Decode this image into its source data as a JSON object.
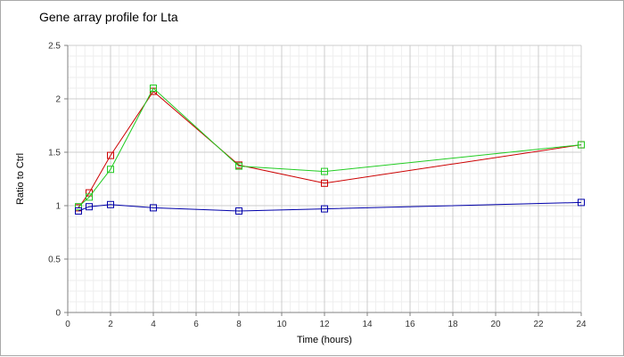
{
  "chart_data": {
    "type": "line",
    "title": "Gene array profile for Lta",
    "xlabel": "Time (hours)",
    "ylabel": "Ratio to Ctrl",
    "xlim": [
      0,
      24
    ],
    "ylim": [
      0,
      2.5
    ],
    "x_ticks": [
      "0",
      "2",
      "4",
      "6",
      "8",
      "10",
      "12",
      "14",
      "16",
      "18",
      "20",
      "22",
      "24"
    ],
    "y_ticks": [
      "0",
      "0.5",
      "1",
      "1.5",
      "2",
      "2.5"
    ],
    "grid": true,
    "legend": "none",
    "series": [
      {
        "color": "#cc0000",
        "marker": "square",
        "x": [
          0.5,
          1,
          2,
          4,
          8,
          12,
          24
        ],
        "values": [
          0.98,
          1.12,
          1.47,
          2.07,
          1.38,
          1.21,
          1.57
        ]
      },
      {
        "color": "#22cc22",
        "marker": "square",
        "x": [
          0.5,
          1,
          2,
          4,
          8,
          12,
          24
        ],
        "values": [
          0.99,
          1.08,
          1.34,
          2.1,
          1.37,
          1.32,
          1.57
        ]
      },
      {
        "color": "#0000aa",
        "marker": "square",
        "x": [
          0.5,
          1,
          2,
          4,
          8,
          12,
          24
        ],
        "values": [
          0.95,
          0.99,
          1.01,
          0.98,
          0.95,
          0.97,
          1.03
        ]
      }
    ]
  }
}
